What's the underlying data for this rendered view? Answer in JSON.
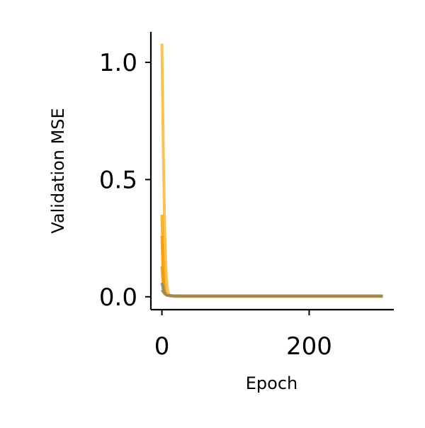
{
  "chart_data": {
    "type": "line",
    "title": "",
    "xlabel": "Epoch",
    "ylabel": "Validation MSE",
    "xlim": [
      -15,
      315
    ],
    "ylim": [
      -0.055,
      1.13
    ],
    "x_ticks": [
      0,
      200
    ],
    "x_tick_labels": [
      "0",
      "200"
    ],
    "y_ticks": [
      0.0,
      0.5,
      1.0
    ],
    "y_tick_labels": [
      "0.0",
      "0.5",
      "1.0"
    ],
    "grid": false,
    "legend": "none",
    "spines": "left-bottom",
    "series": [
      {
        "color": "#ffb733",
        "opacity": 0.85,
        "x": [
          0,
          1,
          2,
          3,
          4,
          5,
          6,
          7,
          8,
          9,
          10,
          12,
          14,
          16,
          18,
          20,
          25,
          30,
          40,
          60,
          100,
          150,
          200,
          250,
          300
        ],
        "values": [
          1.08,
          0.82,
          0.6,
          0.42,
          0.27,
          0.16,
          0.09,
          0.05,
          0.025,
          0.012,
          0.006,
          0.003,
          0.002,
          0.0015,
          0.001,
          0.001,
          0.001,
          0.001,
          0.001,
          0.001,
          0.001,
          0.001,
          0.001,
          0.001,
          0.001
        ]
      },
      {
        "color": "#ffa500",
        "opacity": 0.85,
        "x": [
          0,
          1,
          2,
          3,
          4,
          5,
          6,
          7,
          8,
          10,
          12,
          15,
          20,
          30,
          50,
          100,
          150,
          200,
          250,
          300
        ],
        "values": [
          0.35,
          0.22,
          0.12,
          0.06,
          0.03,
          0.015,
          0.01,
          0.008,
          0.006,
          0.005,
          0.004,
          0.003,
          0.003,
          0.002,
          0.002,
          0.002,
          0.002,
          0.002,
          0.002,
          0.002
        ]
      },
      {
        "color": "#ff9900",
        "opacity": 0.8,
        "x": [
          0,
          1,
          2,
          3,
          4,
          5,
          6,
          8,
          10,
          15,
          20,
          30,
          60,
          100,
          150,
          200,
          250,
          300
        ],
        "values": [
          0.26,
          0.14,
          0.07,
          0.035,
          0.02,
          0.012,
          0.008,
          0.006,
          0.005,
          0.004,
          0.003,
          0.003,
          0.003,
          0.003,
          0.003,
          0.003,
          0.003,
          0.003
        ]
      },
      {
        "color": "#e69a1a",
        "opacity": 0.85,
        "x": [
          0,
          1,
          2,
          3,
          4,
          5,
          6,
          8,
          10,
          15,
          20,
          30,
          60,
          100,
          150,
          200,
          250,
          300
        ],
        "values": [
          0.13,
          0.08,
          0.05,
          0.03,
          0.018,
          0.012,
          0.008,
          0.006,
          0.005,
          0.004,
          0.004,
          0.004,
          0.004,
          0.004,
          0.004,
          0.004,
          0.004,
          0.004
        ]
      },
      {
        "color": "#8c8c6a",
        "opacity": 0.9,
        "x": [
          0,
          1,
          2,
          3,
          4,
          5,
          6,
          8,
          10,
          15,
          20,
          30,
          60,
          100,
          150,
          200,
          250,
          300
        ],
        "values": [
          0.06,
          0.045,
          0.03,
          0.02,
          0.014,
          0.01,
          0.008,
          0.006,
          0.005,
          0.004,
          0.004,
          0.003,
          0.003,
          0.003,
          0.003,
          0.003,
          0.003,
          0.003
        ]
      },
      {
        "color": "#a08a55",
        "opacity": 0.9,
        "x": [
          0,
          2,
          4,
          6,
          8,
          10,
          15,
          20,
          30,
          60,
          100,
          150,
          200,
          250,
          300
        ],
        "values": [
          0.03,
          0.02,
          0.012,
          0.008,
          0.006,
          0.005,
          0.004,
          0.003,
          0.003,
          0.003,
          0.003,
          0.003,
          0.003,
          0.003,
          0.003
        ]
      }
    ]
  }
}
